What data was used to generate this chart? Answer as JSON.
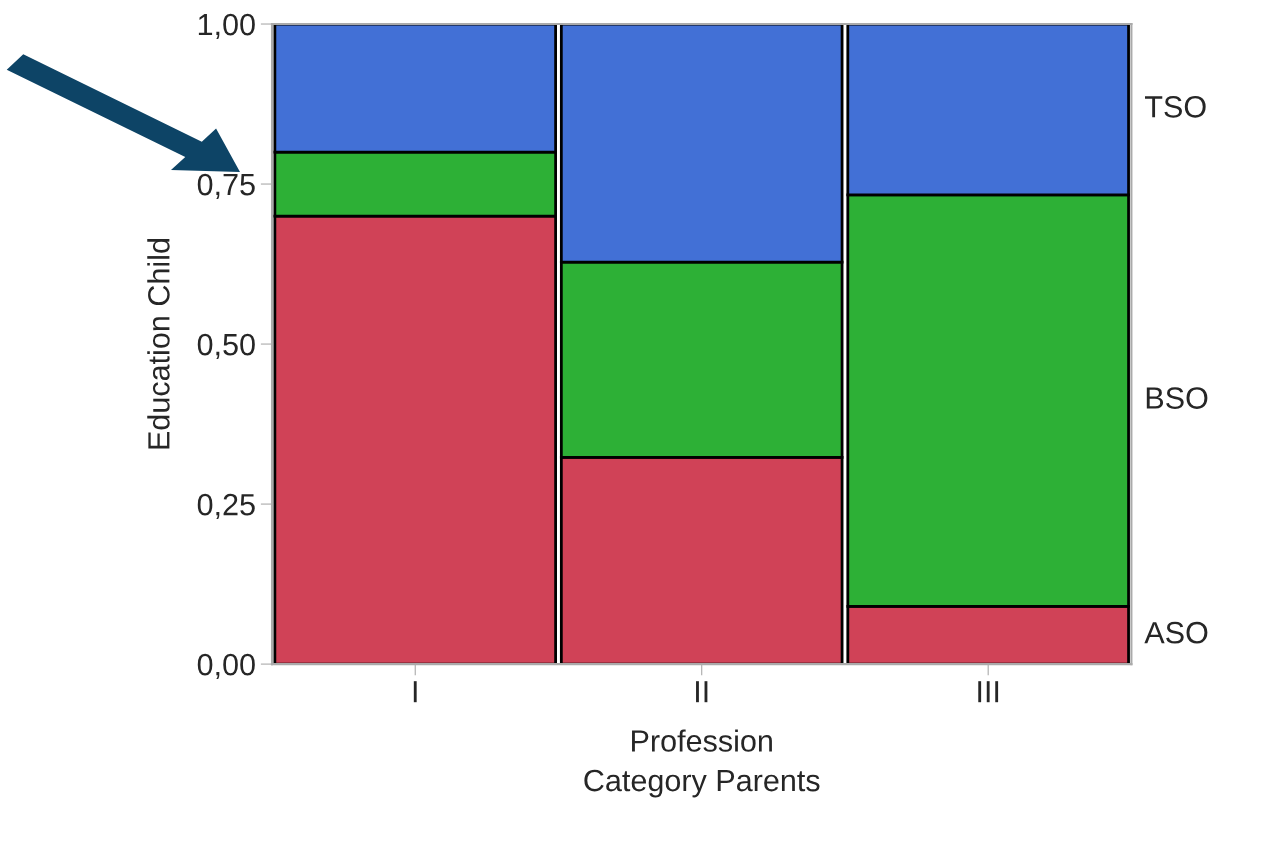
{
  "chart_data": {
    "type": "bar",
    "stacked": true,
    "xlabel": "Profession\nCategory Parents",
    "ylabel": "Education Child",
    "categories": [
      "I",
      "II",
      "III"
    ],
    "ylim": [
      0,
      1
    ],
    "yticks": [
      {
        "value": 0,
        "label": "0,00"
      },
      {
        "value": 0.25,
        "label": "0,25"
      },
      {
        "value": 0.5,
        "label": "0,50"
      },
      {
        "value": 0.75,
        "label": "0,75"
      },
      {
        "value": 1,
        "label": "1,00"
      }
    ],
    "series": [
      {
        "name": "ASO",
        "color": "#d04257",
        "values": [
          0.7,
          0.323,
          0.09
        ]
      },
      {
        "name": "BSO",
        "color": "#2db036",
        "values": [
          0.1,
          0.305,
          0.643
        ]
      },
      {
        "name": "TSO",
        "color": "#4270d6",
        "values": [
          0.2,
          0.372,
          0.267
        ]
      }
    ],
    "grid": false,
    "legend": false
  }
}
